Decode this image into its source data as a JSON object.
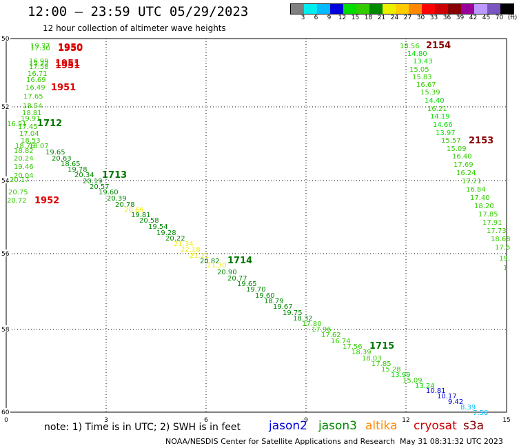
{
  "header": {
    "title": "12:00 – 23:59 UTC 05/29/2023",
    "subtitle": "12 hour collection of altimeter wave heights"
  },
  "colorbar": {
    "colors": [
      "#808080",
      "#00eeee",
      "#00bbff",
      "#0000dd",
      "#00dd00",
      "#33cc00",
      "#008800",
      "#eeee00",
      "#ffcc00",
      "#ff8800",
      "#ff0000",
      "#cc0000",
      "#880000",
      "#990099",
      "#bb99ff",
      "#7a55c0",
      "#000000"
    ],
    "labels": [
      "3",
      "6",
      "9",
      "12",
      "15",
      "18",
      "21",
      "24",
      "27",
      "30",
      "33",
      "36",
      "39",
      "42",
      "45",
      "70",
      "(ft)"
    ]
  },
  "map": {
    "x_ticks": [
      "0",
      "3",
      "6",
      "9",
      "12",
      "15"
    ],
    "y_ticks": [
      "50",
      "52",
      "54",
      "56",
      "58",
      "60"
    ]
  },
  "passes": [
    {
      "label": "1950",
      "color": "#dd0000"
    },
    {
      "label": "1950",
      "color": "#dd0000"
    },
    {
      "label": "1951",
      "color": "#dd0000"
    },
    {
      "label": "1951",
      "color": "#dd0000"
    },
    {
      "label": "1951",
      "color": "#dd0000"
    },
    {
      "label": "1952",
      "color": "#dd0000"
    },
    {
      "label": "1712",
      "color": "#007700"
    },
    {
      "label": "1713",
      "color": "#007700"
    },
    {
      "label": "1714",
      "color": "#007700"
    },
    {
      "label": "1715",
      "color": "#007700"
    },
    {
      "label": "2154",
      "color": "#880000"
    },
    {
      "label": "2153",
      "color": "#880000"
    }
  ],
  "readings": [
    {
      "v": "19.77",
      "c": "#33cc00"
    },
    {
      "v": "17.30",
      "c": "#33cc00"
    },
    {
      "v": "16.99",
      "c": "#33cc00"
    },
    {
      "v": "17.22",
      "c": "#33cc00"
    },
    {
      "v": "17.58",
      "c": "#33cc00"
    },
    {
      "v": "16.71",
      "c": "#33cc00"
    },
    {
      "v": "16.69",
      "c": "#33cc00"
    },
    {
      "v": "16.49",
      "c": "#33cc00"
    },
    {
      "v": "17.65",
      "c": "#33cc00"
    },
    {
      "v": "18.54",
      "c": "#33cc00"
    },
    {
      "v": "18.81",
      "c": "#33cc00"
    },
    {
      "v": "19.91",
      "c": "#33cc00"
    },
    {
      "v": "16.51",
      "c": "#33cc00"
    },
    {
      "v": "17.45",
      "c": "#33cc00"
    },
    {
      "v": "17.04",
      "c": "#33cc00"
    },
    {
      "v": "18.53",
      "c": "#33cc00"
    },
    {
      "v": "18.76",
      "c": "#33cc00"
    },
    {
      "v": "18.07",
      "c": "#33cc00"
    },
    {
      "v": "18.82",
      "c": "#33cc00"
    },
    {
      "v": "20.24",
      "c": "#33cc00"
    },
    {
      "v": "19.46",
      "c": "#33cc00"
    },
    {
      "v": "20.04",
      "c": "#33cc00"
    },
    {
      "v": "20.17",
      "c": "#33cc00"
    },
    {
      "v": "20.75",
      "c": "#33cc00"
    },
    {
      "v": "20.72",
      "c": "#33cc00"
    },
    {
      "v": "19.65",
      "c": "#008800"
    },
    {
      "v": "20.63",
      "c": "#008800"
    },
    {
      "v": "18.65",
      "c": "#008800"
    },
    {
      "v": "19.78",
      "c": "#008800"
    },
    {
      "v": "20.34",
      "c": "#008800"
    },
    {
      "v": "20.19",
      "c": "#008800"
    },
    {
      "v": "20.57",
      "c": "#008800"
    },
    {
      "v": "19.60",
      "c": "#008800"
    },
    {
      "v": "20.39",
      "c": "#008800"
    },
    {
      "v": "20.78",
      "c": "#008800"
    },
    {
      "v": "20.69",
      "c": "#eeee00"
    },
    {
      "v": "19.81",
      "c": "#008800"
    },
    {
      "v": "20.58",
      "c": "#008800"
    },
    {
      "v": "19.54",
      "c": "#008800"
    },
    {
      "v": "19.28",
      "c": "#008800"
    },
    {
      "v": "20.22",
      "c": "#008800"
    },
    {
      "v": "21.34",
      "c": "#eeee00"
    },
    {
      "v": "22.18",
      "c": "#eeee00"
    },
    {
      "v": "21.21",
      "c": "#eeee00"
    },
    {
      "v": "20.82",
      "c": "#008800"
    },
    {
      "v": "21.30",
      "c": "#eeee00"
    },
    {
      "v": "20.90",
      "c": "#008800"
    },
    {
      "v": "20.77",
      "c": "#008800"
    },
    {
      "v": "19.65",
      "c": "#008800"
    },
    {
      "v": "19.70",
      "c": "#008800"
    },
    {
      "v": "19.60",
      "c": "#008800"
    },
    {
      "v": "18.79",
      "c": "#008800"
    },
    {
      "v": "19.67",
      "c": "#008800"
    },
    {
      "v": "19.75",
      "c": "#008800"
    },
    {
      "v": "18.32",
      "c": "#008800"
    },
    {
      "v": "17.80",
      "c": "#33cc00"
    },
    {
      "v": "17.96",
      "c": "#33cc00"
    },
    {
      "v": "17.62",
      "c": "#33cc00"
    },
    {
      "v": "16.74",
      "c": "#33cc00"
    },
    {
      "v": "17.56",
      "c": "#33cc00"
    },
    {
      "v": "18.39",
      "c": "#33cc00"
    },
    {
      "v": "18.03",
      "c": "#33cc00"
    },
    {
      "v": "17.85",
      "c": "#33cc00"
    },
    {
      "v": "15.28",
      "c": "#33cc00"
    },
    {
      "v": "13.99",
      "c": "#00dd00"
    },
    {
      "v": "15.09",
      "c": "#33cc00"
    },
    {
      "v": "13.24",
      "c": "#00dd00"
    },
    {
      "v": "10.81",
      "c": "#0000dd"
    },
    {
      "v": "10.17",
      "c": "#0000dd"
    },
    {
      "v": "9.42",
      "c": "#0000dd"
    },
    {
      "v": "8.39",
      "c": "#00bbff"
    },
    {
      "v": "7.56",
      "c": "#00bbff"
    },
    {
      "v": "18.56",
      "c": "#33cc00"
    },
    {
      "v": "14.80",
      "c": "#00dd00"
    },
    {
      "v": "13.43",
      "c": "#00dd00"
    },
    {
      "v": "15.05",
      "c": "#33cc00"
    },
    {
      "v": "15.83",
      "c": "#33cc00"
    },
    {
      "v": "16.67",
      "c": "#33cc00"
    },
    {
      "v": "15.39",
      "c": "#33cc00"
    },
    {
      "v": "14.40",
      "c": "#00dd00"
    },
    {
      "v": "16.21",
      "c": "#33cc00"
    },
    {
      "v": "14.19",
      "c": "#00dd00"
    },
    {
      "v": "14.66",
      "c": "#00dd00"
    },
    {
      "v": "13.97",
      "c": "#00dd00"
    },
    {
      "v": "15.57",
      "c": "#33cc00"
    },
    {
      "v": "15.09",
      "c": "#33cc00"
    },
    {
      "v": "16.40",
      "c": "#33cc00"
    },
    {
      "v": "17.69",
      "c": "#33cc00"
    },
    {
      "v": "16.24",
      "c": "#33cc00"
    },
    {
      "v": "17.21",
      "c": "#33cc00"
    },
    {
      "v": "16.84",
      "c": "#33cc00"
    },
    {
      "v": "17.40",
      "c": "#33cc00"
    },
    {
      "v": "18.20",
      "c": "#33cc00"
    },
    {
      "v": "17.85",
      "c": "#33cc00"
    },
    {
      "v": "17.91",
      "c": "#33cc00"
    },
    {
      "v": "17.73",
      "c": "#33cc00"
    },
    {
      "v": "18.68",
      "c": "#33cc00"
    },
    {
      "v": "17.6",
      "c": "#33cc00"
    },
    {
      "v": "19.",
      "c": "#33cc00"
    },
    {
      "v": "1",
      "c": "#33cc00"
    }
  ],
  "footer": {
    "note": "note:  1) Time is in UTC;  2) SWH is in feet",
    "satellites": [
      {
        "name": "jason2",
        "color": "#0000dd"
      },
      {
        "name": "jason3",
        "color": "#008800"
      },
      {
        "name": "altika",
        "color": "#ff8800"
      },
      {
        "name": "cryosat",
        "color": "#cc0000"
      },
      {
        "name": "s3a",
        "color": "#880000"
      }
    ],
    "credit": "NOAA/NESDIS Center for Satellite Applications and Research",
    "timestamp": "May 31 08:31:32 UTC 2023"
  }
}
